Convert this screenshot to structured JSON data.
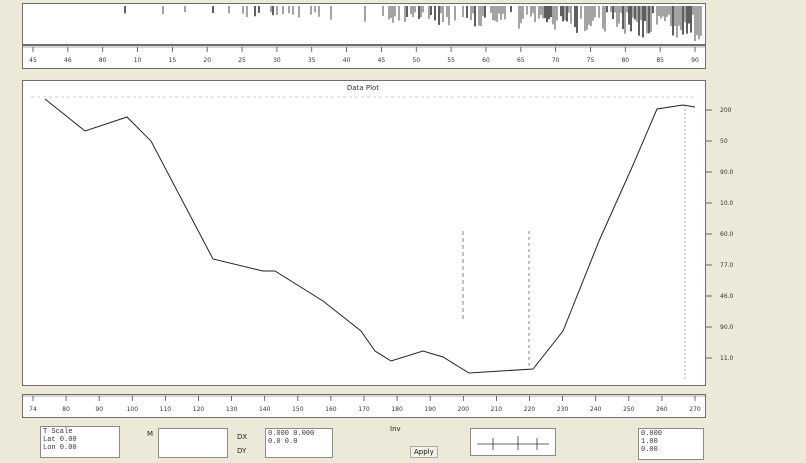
{
  "wave": {
    "color": "#1a1a1a"
  },
  "top_ruler": {
    "labels": [
      "45",
      "46",
      "80",
      "10",
      "15",
      "20",
      "25",
      "30",
      "35",
      "40",
      "45",
      "50",
      "55",
      "60",
      "65",
      "70",
      "75",
      "80",
      "85",
      "90"
    ]
  },
  "plot": {
    "title": "Data Plot",
    "right_scale": [
      "200",
      "50",
      "90.0",
      "10.0",
      "60.0",
      "77.0",
      "46.0",
      "90.0",
      "11.0"
    ],
    "line_color": "#222222"
  },
  "bottom_ruler": {
    "labels": [
      "74",
      "80",
      "90",
      "100",
      "110",
      "120",
      "130",
      "140",
      "150",
      "160",
      "170",
      "180",
      "190",
      "200",
      "210",
      "220",
      "230",
      "240",
      "250",
      "260",
      "270"
    ]
  },
  "info_panel": {
    "left_box": {
      "title": "T Scale",
      "line1": "Lat 0.00",
      "line2": "Lon 0.00"
    },
    "marker": "M",
    "dx_label": "DX",
    "dy_label": "DY",
    "dx_value": "0.000 0.000",
    "dy_value": "0.0 0.0",
    "mid_caption": "Inv",
    "btn_label": "Apply",
    "right_box": {
      "line1": "0.000",
      "line2": "1.00",
      "line3": "0.00"
    }
  }
}
